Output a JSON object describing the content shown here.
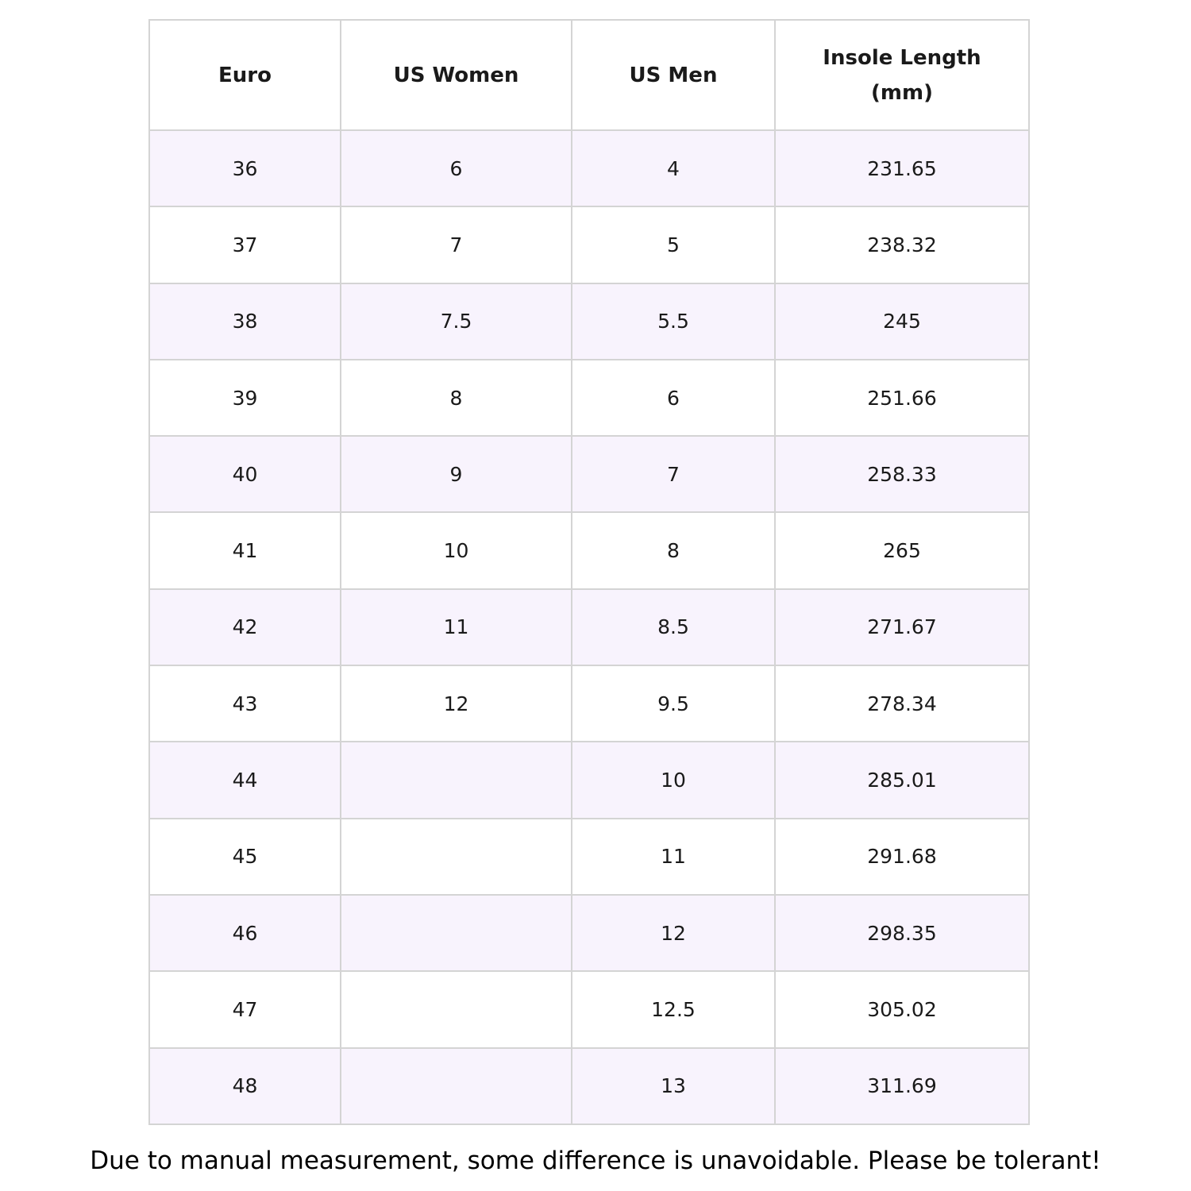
{
  "table": {
    "header": [
      "Euro",
      "US Women",
      "US Men",
      "Insole Length (mm)"
    ],
    "rows": [
      [
        "36",
        "6",
        "4",
        "231.65"
      ],
      [
        "37",
        "7",
        "5",
        "238.32"
      ],
      [
        "38",
        "7.5",
        "5.5",
        "245"
      ],
      [
        "39",
        "8",
        "6",
        "251.66"
      ],
      [
        "40",
        "9",
        "7",
        "258.33"
      ],
      [
        "41",
        "10",
        "8",
        "265"
      ],
      [
        "42",
        "11",
        "8.5",
        "271.67"
      ],
      [
        "43",
        "12",
        "9.5",
        "278.34"
      ],
      [
        "44",
        null,
        "10",
        "285.01"
      ],
      [
        "45",
        null,
        "11",
        "291.68"
      ],
      [
        "46",
        null,
        "12",
        "298.35"
      ],
      [
        "47",
        null,
        "12.5",
        "305.02"
      ],
      [
        "48",
        null,
        "13",
        "311.69"
      ]
    ]
  },
  "footer": "Due to manual measurement, some difference is unavoidable. Please be tolerant!"
}
